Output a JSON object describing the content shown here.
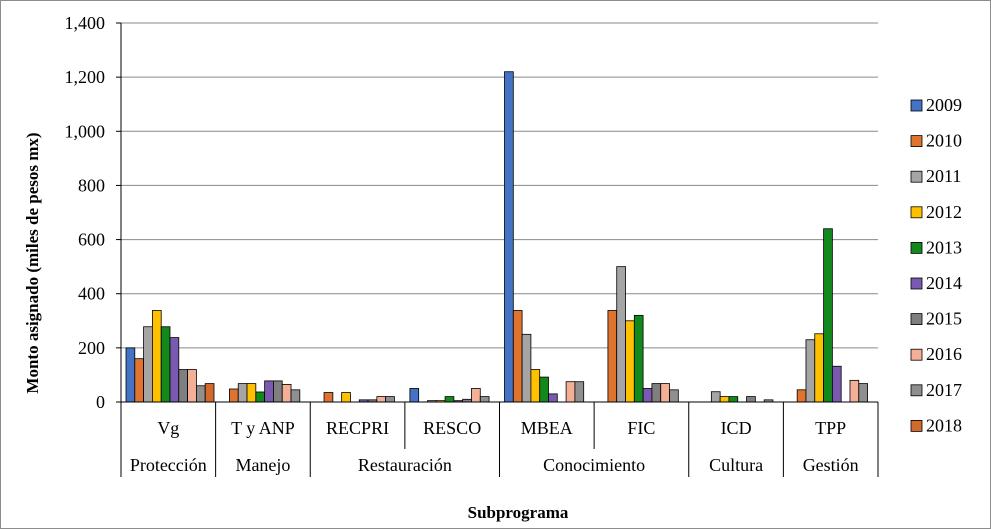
{
  "chart_data": {
    "type": "bar",
    "xlabel": "Subprograma",
    "ylabel": "Monto asignado (miles de pesos mx)",
    "ylim": [
      0,
      1400
    ],
    "yticks": [
      "0",
      "200",
      "400",
      "600",
      "800",
      "1,000",
      "1,200",
      "1,400"
    ],
    "grid": true,
    "legend_position": "right",
    "categories": [
      "Vg",
      "T y ANP",
      "RECPRI",
      "RESCO",
      "MBEA",
      "FIC",
      "ICD",
      "TPP"
    ],
    "groups": [
      {
        "label": "Protección",
        "span": 1
      },
      {
        "label": "Manejo",
        "span": 1
      },
      {
        "label": "Restauración",
        "span": 2
      },
      {
        "label": "Conocimiento",
        "span": 2
      },
      {
        "label": "Cultura",
        "span": 1
      },
      {
        "label": "Gestión",
        "span": 1
      }
    ],
    "series": [
      {
        "name": "2009",
        "color": "#4472c4",
        "values": [
          200,
          0,
          0,
          50,
          1220,
          0,
          0,
          0
        ]
      },
      {
        "name": "2010",
        "color": "#e0742f",
        "values": [
          160,
          48,
          35,
          0,
          338,
          338,
          0,
          45
        ]
      },
      {
        "name": "2011",
        "color": "#a5a5a5",
        "values": [
          278,
          68,
          0,
          5,
          250,
          500,
          38,
          230
        ]
      },
      {
        "name": "2012",
        "color": "#ffc000",
        "values": [
          338,
          68,
          35,
          5,
          120,
          300,
          20,
          252
        ]
      },
      {
        "name": "2013",
        "color": "#13891b",
        "values": [
          278,
          37,
          0,
          20,
          92,
          320,
          20,
          640
        ]
      },
      {
        "name": "2014",
        "color": "#7a5ab0",
        "values": [
          238,
          78,
          8,
          5,
          30,
          50,
          0,
          132
        ]
      },
      {
        "name": "2015",
        "color": "#7f7f7f",
        "values": [
          120,
          78,
          8,
          10,
          0,
          68,
          20,
          0
        ]
      },
      {
        "name": "2016",
        "color": "#f4b096",
        "values": [
          120,
          65,
          20,
          50,
          75,
          68,
          0,
          80
        ]
      },
      {
        "name": "2017",
        "color": "#8f8f8f",
        "values": [
          60,
          45,
          20,
          20,
          75,
          45,
          8,
          68
        ]
      },
      {
        "name": "2018",
        "color": "#d26a2d",
        "values": [
          68,
          0,
          0,
          0,
          0,
          0,
          0,
          0
        ]
      }
    ]
  }
}
